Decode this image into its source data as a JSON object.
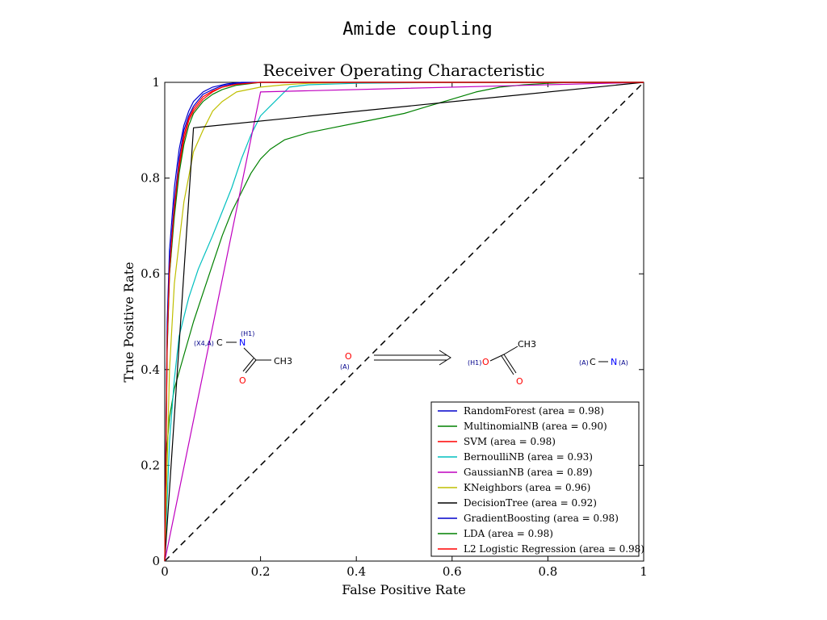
{
  "figure": {
    "suptitle": "Amide coupling"
  },
  "chart_data": {
    "type": "line",
    "title": "Receiver Operating Characteristic",
    "xlabel": "False Positive Rate",
    "ylabel": "True Positive Rate",
    "xlim": [
      0,
      1
    ],
    "ylim": [
      0,
      1
    ],
    "xticks": [
      "0",
      "0.2",
      "0.4",
      "0.6",
      "0.8",
      "1"
    ],
    "yticks": [
      "0",
      "0.2",
      "0.4",
      "0.6",
      "0.8",
      "1"
    ],
    "legend_position": "lower-right",
    "diagonal": {
      "x": [
        0,
        1
      ],
      "y": [
        0,
        1
      ],
      "style": "dashed",
      "color": "#000000"
    },
    "series": [
      {
        "name": "RandomForest (area = 0.98)",
        "color": "#0000cc",
        "x": [
          0,
          0.005,
          0.01,
          0.02,
          0.03,
          0.04,
          0.05,
          0.06,
          0.08,
          0.1,
          0.13,
          0.16,
          0.2,
          1
        ],
        "y": [
          0,
          0.5,
          0.65,
          0.78,
          0.86,
          0.91,
          0.94,
          0.96,
          0.98,
          0.99,
          0.997,
          1.0,
          1.0,
          1
        ]
      },
      {
        "name": "MultinomialNB (area = 0.90)",
        "color": "#008000",
        "x": [
          0,
          0.003,
          0.01,
          0.02,
          0.04,
          0.06,
          0.08,
          0.1,
          0.12,
          0.14,
          0.16,
          0.18,
          0.2,
          0.22,
          0.25,
          0.3,
          0.35,
          0.4,
          0.45,
          0.5,
          0.55,
          0.6,
          0.65,
          0.7,
          0.75,
          0.8,
          0.85,
          0.9,
          1
        ],
        "y": [
          0,
          0.22,
          0.3,
          0.36,
          0.43,
          0.5,
          0.56,
          0.62,
          0.68,
          0.73,
          0.77,
          0.81,
          0.84,
          0.86,
          0.88,
          0.895,
          0.905,
          0.915,
          0.925,
          0.935,
          0.95,
          0.965,
          0.98,
          0.99,
          0.995,
          0.998,
          1.0,
          1.0,
          1
        ]
      },
      {
        "name": "SVM (area = 0.98)",
        "color": "#ff0000",
        "x": [
          0,
          0.005,
          0.01,
          0.02,
          0.03,
          0.04,
          0.05,
          0.06,
          0.08,
          0.1,
          0.12,
          0.15,
          0.2,
          1
        ],
        "y": [
          0,
          0.45,
          0.6,
          0.73,
          0.82,
          0.88,
          0.92,
          0.94,
          0.965,
          0.98,
          0.99,
          0.997,
          1.0,
          1
        ]
      },
      {
        "name": "BernoulliNB (area = 0.93)",
        "color": "#00bfbf",
        "x": [
          0,
          0.01,
          0.02,
          0.03,
          0.05,
          0.07,
          0.1,
          0.12,
          0.14,
          0.16,
          0.18,
          0.2,
          0.22,
          0.24,
          0.26,
          0.3,
          0.4,
          0.6,
          0.8,
          1
        ],
        "y": [
          0,
          0.25,
          0.38,
          0.47,
          0.55,
          0.61,
          0.68,
          0.73,
          0.78,
          0.84,
          0.89,
          0.93,
          0.95,
          0.97,
          0.99,
          0.995,
          0.998,
          1.0,
          1.0,
          1
        ]
      },
      {
        "name": "GaussianNB (area = 0.89)",
        "color": "#bf00bf",
        "x": [
          0,
          0.2,
          1
        ],
        "y": [
          0,
          0.98,
          1
        ]
      },
      {
        "name": "KNeighbors (area = 0.96)",
        "color": "#bfbf00",
        "x": [
          0,
          0.01,
          0.02,
          0.04,
          0.06,
          0.08,
          0.1,
          0.12,
          0.15,
          0.2,
          0.25,
          0.3,
          0.4,
          1
        ],
        "y": [
          0,
          0.4,
          0.58,
          0.75,
          0.855,
          0.9,
          0.94,
          0.96,
          0.98,
          0.99,
          0.995,
          0.998,
          1.0,
          1
        ]
      },
      {
        "name": "DecisionTree (area = 0.92)",
        "color": "#000000",
        "x": [
          0,
          0.06,
          1
        ],
        "y": [
          0,
          0.905,
          1
        ]
      },
      {
        "name": "GradientBoosting (area = 0.98)",
        "color": "#0000cc",
        "x": [
          0,
          0.005,
          0.01,
          0.02,
          0.03,
          0.04,
          0.05,
          0.06,
          0.08,
          0.1,
          0.12,
          0.15,
          0.2,
          1
        ],
        "y": [
          0,
          0.48,
          0.62,
          0.75,
          0.84,
          0.9,
          0.93,
          0.95,
          0.975,
          0.985,
          0.993,
          0.998,
          1.0,
          1
        ]
      },
      {
        "name": "LDA (area = 0.98)",
        "color": "#008000",
        "x": [
          0,
          0.005,
          0.01,
          0.02,
          0.03,
          0.04,
          0.05,
          0.06,
          0.08,
          0.1,
          0.12,
          0.15,
          0.2,
          1
        ],
        "y": [
          0,
          0.44,
          0.6,
          0.72,
          0.81,
          0.87,
          0.91,
          0.935,
          0.96,
          0.975,
          0.985,
          0.994,
          1.0,
          1
        ]
      },
      {
        "name": "L2 Logistic Regression (area = 0.98)",
        "color": "#ff0000",
        "x": [
          0,
          0.005,
          0.01,
          0.02,
          0.03,
          0.04,
          0.05,
          0.06,
          0.08,
          0.1,
          0.12,
          0.15,
          0.2,
          1
        ],
        "y": [
          0,
          0.46,
          0.61,
          0.74,
          0.83,
          0.89,
          0.925,
          0.945,
          0.97,
          0.982,
          0.99,
          0.996,
          1.0,
          1
        ]
      }
    ]
  },
  "reaction": {
    "reactant": {
      "labels": {
        "x4a": "(X4,A)",
        "h1": "(H1)"
      },
      "atoms": {
        "c": "C",
        "n": "N",
        "o": "O",
        "ch3": "CH3"
      }
    },
    "leaving_group": {
      "labels": {
        "a": "(A)"
      },
      "atoms": {
        "o": "O"
      }
    },
    "product_acid": {
      "labels": {
        "h1": "(H1)"
      },
      "atoms": {
        "o": "O",
        "o2": "O",
        "ch3": "CH3"
      }
    },
    "product_amine": {
      "labels": {
        "a1": "(A)",
        "a2": "(A)"
      },
      "atoms": {
        "c": "C",
        "n": "N"
      }
    },
    "colors": {
      "carbon": "#000000",
      "nitrogen": "#0000ff",
      "oxygen": "#ff0000",
      "map": "#00008b"
    }
  }
}
